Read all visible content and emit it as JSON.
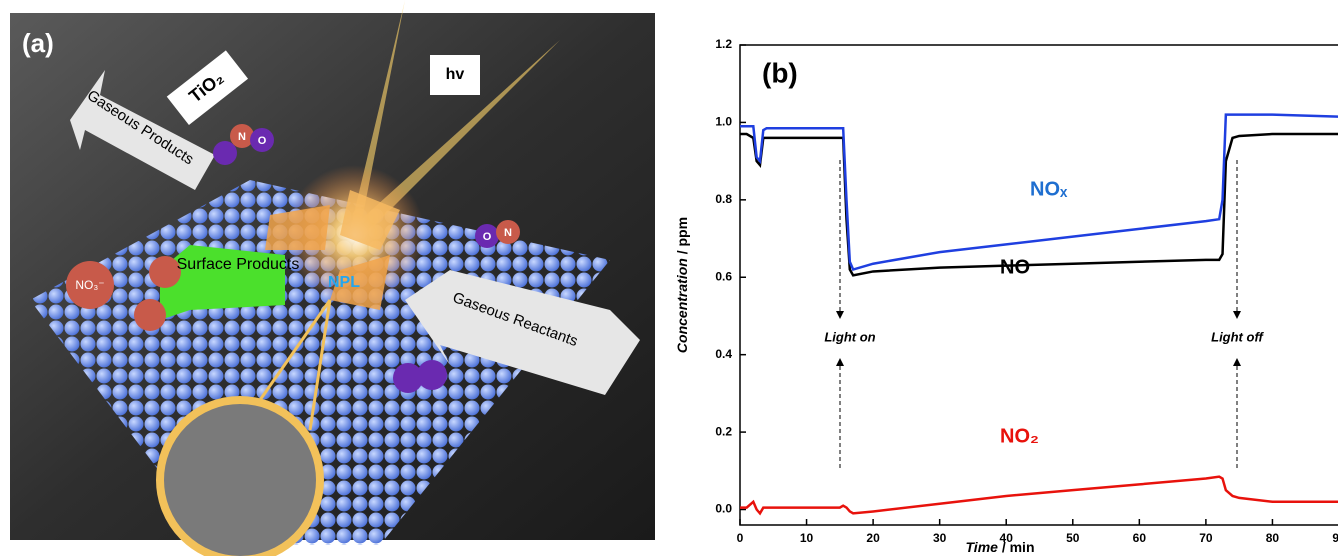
{
  "panel_a": {
    "label": "(a)",
    "tio2": "TiO₂",
    "hv": "hv",
    "gaseous_products": "Gaseous Products",
    "surface_products": "Surface Products",
    "npl": "NPL",
    "gaseous_reactants": "Gaseous Reactants",
    "no3": "NO₃⁻",
    "n": "N",
    "o": "O"
  },
  "chart_data": {
    "type": "line",
    "panel_label": "(b)",
    "xlabel": "Time",
    "xlabel_unit": "/ min",
    "ylabel": "Concentration",
    "ylabel_unit": "/ ppm",
    "annotations": [
      "Light on",
      "Light off"
    ],
    "x": [
      0,
      1,
      2,
      2.5,
      3,
      3.5,
      4,
      10,
      15,
      15.5,
      16,
      16.5,
      17,
      20,
      30,
      40,
      50,
      60,
      70,
      72,
      72.5,
      73,
      74,
      75,
      80,
      90
    ],
    "series": [
      {
        "name": "NOₓ",
        "color": "#1f3fe0",
        "values": [
          0.99,
          0.99,
          0.99,
          0.91,
          0.9,
          0.98,
          0.985,
          0.985,
          0.985,
          0.985,
          0.8,
          0.64,
          0.62,
          0.635,
          0.665,
          0.685,
          0.705,
          0.725,
          0.745,
          0.75,
          0.8,
          1.02,
          1.02,
          1.02,
          1.02,
          1.015
        ]
      },
      {
        "name": "NO",
        "color": "#000000",
        "values": [
          0.97,
          0.97,
          0.96,
          0.9,
          0.89,
          0.96,
          0.96,
          0.96,
          0.96,
          0.96,
          0.75,
          0.62,
          0.605,
          0.615,
          0.625,
          0.63,
          0.635,
          0.64,
          0.645,
          0.645,
          0.66,
          0.9,
          0.96,
          0.965,
          0.97,
          0.97
        ]
      },
      {
        "name": "NO₂",
        "color": "#e8120c",
        "values": [
          0.005,
          0.005,
          0.02,
          0.0,
          -0.01,
          0.005,
          0.005,
          0.005,
          0.005,
          0.01,
          0.005,
          -0.005,
          -0.01,
          -0.005,
          0.015,
          0.035,
          0.05,
          0.065,
          0.08,
          0.085,
          0.08,
          0.05,
          0.035,
          0.03,
          0.02,
          0.02
        ]
      }
    ],
    "xlim": [
      0,
      90
    ],
    "xticks": [
      0,
      10,
      20,
      30,
      40,
      50,
      60,
      70,
      80,
      90
    ],
    "ylim": [
      -0.04,
      1.2
    ],
    "yticks": [
      {
        "value": 0,
        "label": "0.0"
      },
      {
        "value": 0.2,
        "label": "0.2"
      },
      {
        "value": 0.4,
        "label": "0.4"
      },
      {
        "value": 0.6,
        "label": "0.6"
      },
      {
        "value": 0.8,
        "label": "0.8"
      },
      {
        "value": 1,
        "label": "1.0"
      },
      {
        "value": 1.2,
        "label": "1.2"
      }
    ]
  }
}
